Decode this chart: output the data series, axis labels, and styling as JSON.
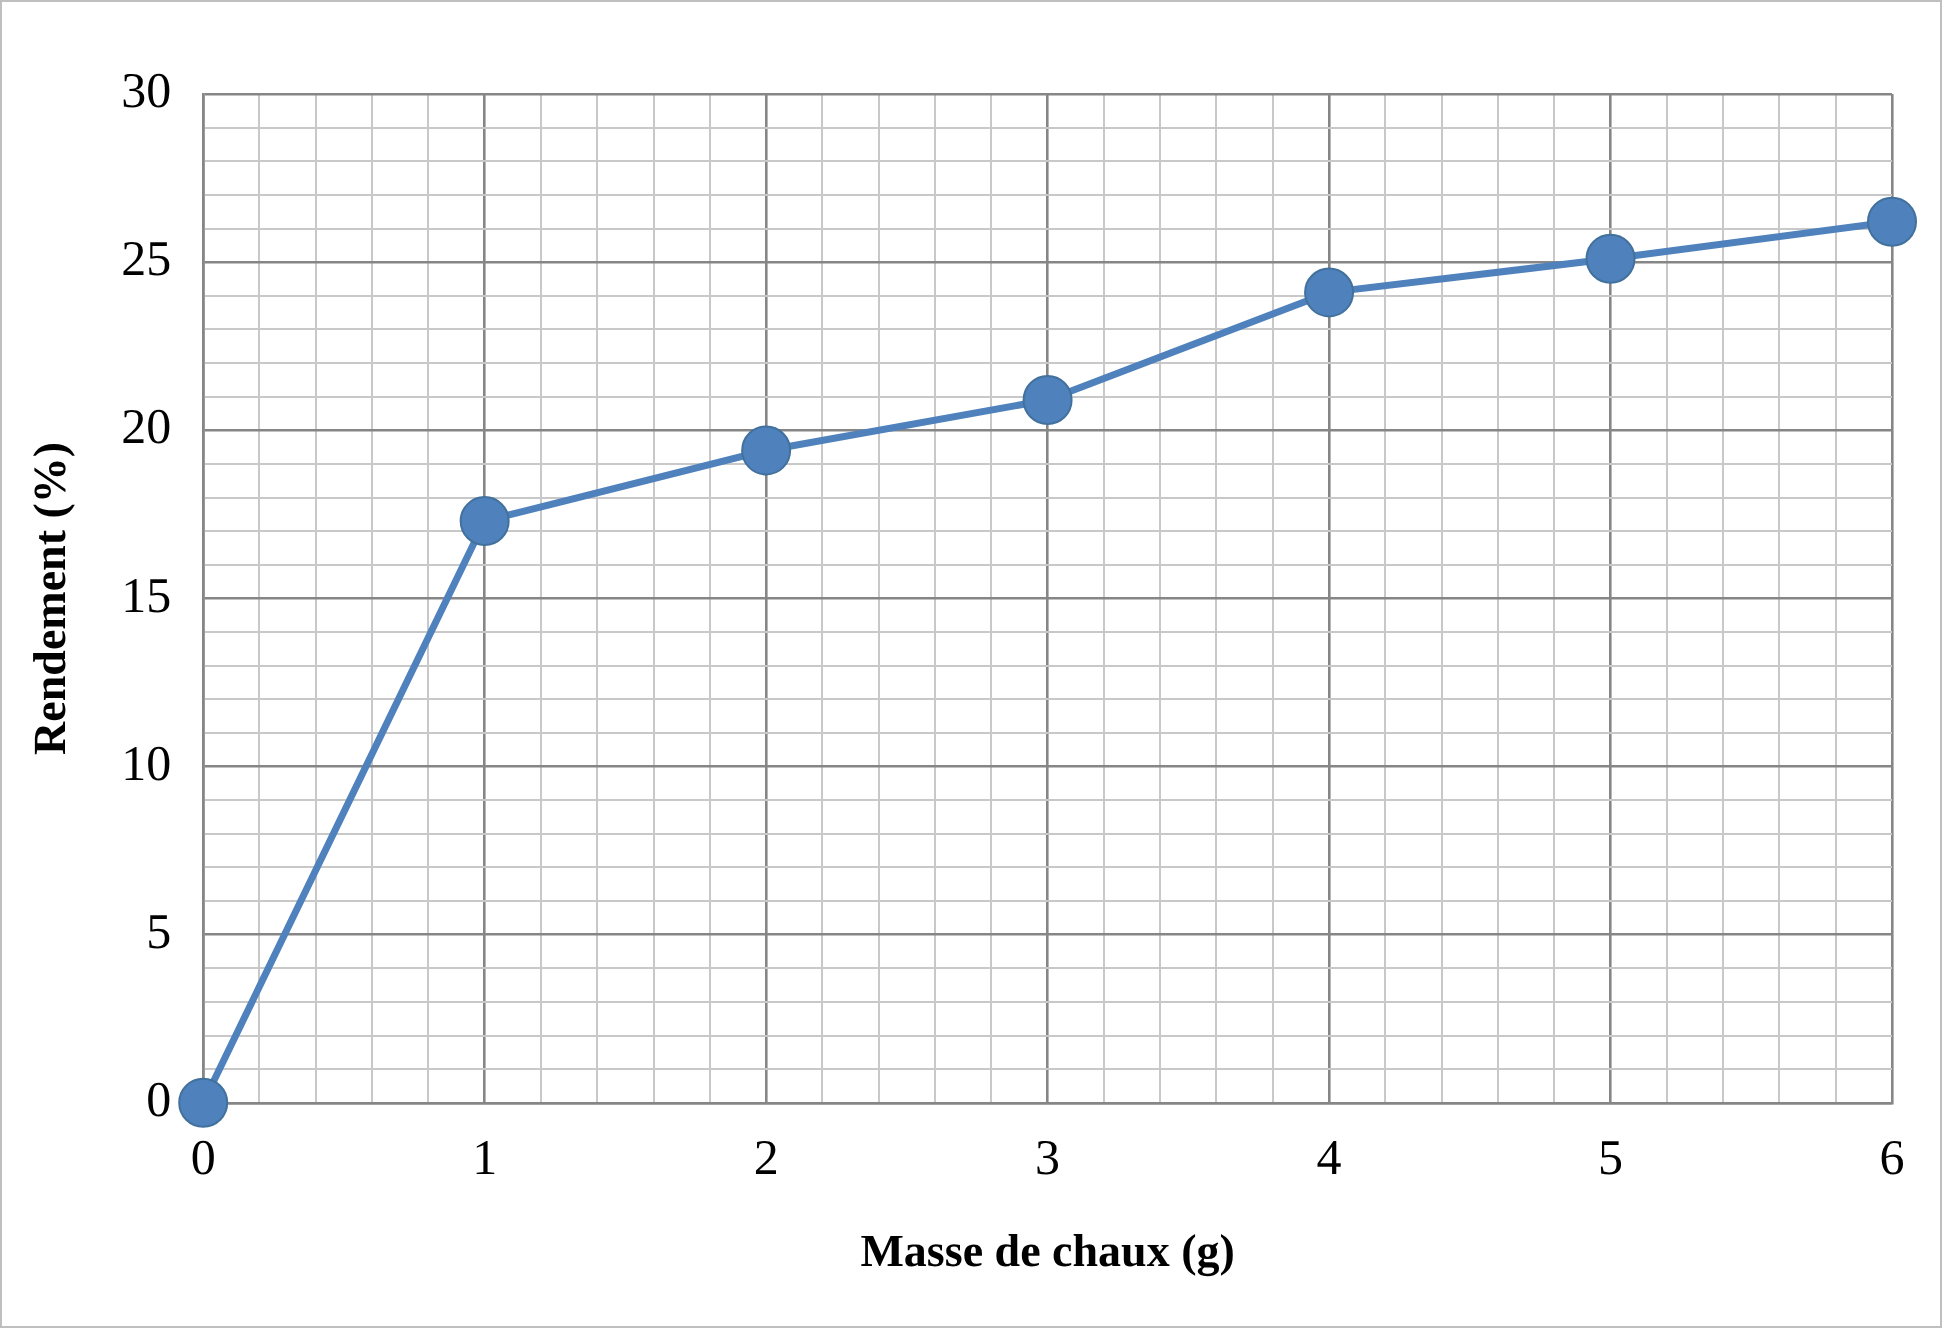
{
  "chart_data": {
    "type": "line",
    "xlabel": "Masse de chaux (g)",
    "ylabel": "Rendement (%)",
    "x": [
      0,
      1,
      2,
      3,
      4,
      5,
      6
    ],
    "series": [
      {
        "color": "#4f81bd",
        "values": [
          0,
          17.3,
          19.4,
          20.9,
          24.1,
          25.1,
          26.2
        ]
      }
    ],
    "xlim": [
      0,
      6
    ],
    "xticks": [
      0,
      {
        "value": 0.2,
        "label": null
      },
      {
        "value": 0.4,
        "label": null
      },
      {
        "value": 0.6,
        "label": null
      },
      {
        "value": 0.8,
        "label": null
      },
      1,
      {
        "value": 1.2,
        "label": null
      },
      {
        "value": 1.4,
        "label": null
      },
      {
        "value": 1.6,
        "label": null
      },
      {
        "value": 1.8,
        "label": null
      },
      2,
      {
        "value": 2.2,
        "label": null
      },
      {
        "value": 2.4,
        "label": null
      },
      {
        "value": 2.6,
        "label": null
      },
      {
        "value": 2.8,
        "label": null
      },
      3,
      {
        "value": 3.2,
        "label": null
      },
      {
        "value": 3.4,
        "label": null
      },
      {
        "value": 3.6,
        "label": null
      },
      {
        "value": 3.8,
        "label": null
      },
      4,
      {
        "value": 4.2,
        "label": null
      },
      {
        "value": 4.4,
        "label": null
      },
      {
        "value": 4.6,
        "label": null
      },
      {
        "value": 4.8,
        "label": null
      },
      5,
      {
        "value": 5.2,
        "label": null
      },
      {
        "value": 5.4,
        "label": null
      },
      {
        "value": 5.6,
        "label": null
      },
      {
        "value": 5.8,
        "label": null
      },
      6
    ],
    "ylim": [
      0,
      30
    ],
    "yticks": [
      0,
      {
        "value": 1,
        "label": null
      },
      {
        "value": 2,
        "label": null
      },
      {
        "value": 3,
        "label": null
      },
      {
        "value": 4,
        "label": null
      },
      5,
      {
        "value": 6,
        "label": null
      },
      {
        "value": 7,
        "label": null
      },
      {
        "value": 8,
        "label": null
      },
      {
        "value": 9,
        "label": null
      },
      10,
      {
        "value": 11,
        "label": null
      },
      {
        "value": 12,
        "label": null
      },
      {
        "value": 13,
        "label": null
      },
      {
        "value": 14,
        "label": null
      },
      15,
      {
        "value": 16,
        "label": null
      },
      {
        "value": 17,
        "label": null
      },
      {
        "value": 18,
        "label": null
      },
      {
        "value": 19,
        "label": null
      },
      20,
      {
        "value": 21,
        "label": null
      },
      {
        "value": 22,
        "label": null
      },
      {
        "value": 23,
        "label": null
      },
      {
        "value": 24,
        "label": null
      },
      25,
      {
        "value": 26,
        "label": null
      },
      {
        "value": 27,
        "label": null
      },
      {
        "value": 28,
        "label": null
      },
      {
        "value": 29,
        "label": null
      },
      30
    ],
    "grid": true,
    "legend": false,
    "marker": "circle",
    "line_style": "solid"
  }
}
